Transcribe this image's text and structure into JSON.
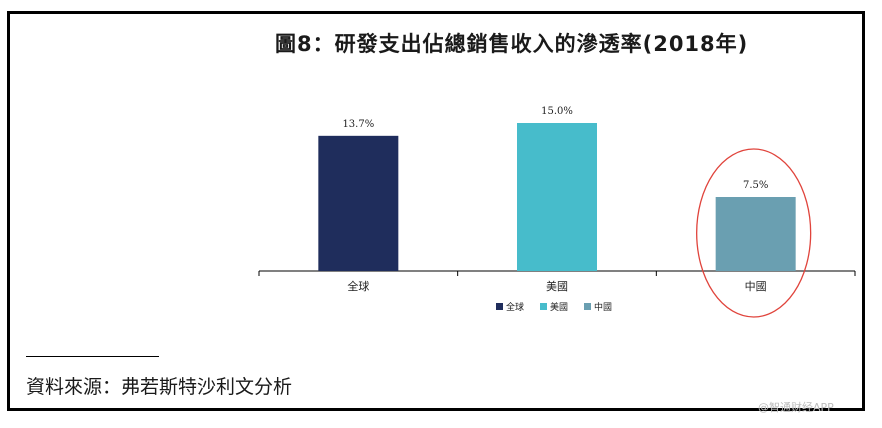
{
  "title": "圖8：研發支出佔總銷售收入的滲透率(2018年)",
  "source": "資料來源：弗若斯特沙利文分析",
  "watermark": "@智通财经APP",
  "chart_data": {
    "type": "bar",
    "categories": [
      "全球",
      "美國",
      "中國"
    ],
    "values": [
      13.7,
      15.0,
      7.5
    ],
    "value_labels": [
      "13.7%",
      "15.0%",
      "7.5%"
    ],
    "colors": [
      "#1f2d5c",
      "#47bccb",
      "#6a9fb1"
    ],
    "legend": [
      "全球",
      "美國",
      "中國"
    ],
    "legend_position": "bottom-center",
    "highlighted_category": "中國",
    "highlight_color": "#e0443c",
    "ylim": [
      0,
      15.0
    ],
    "grid": false
  }
}
